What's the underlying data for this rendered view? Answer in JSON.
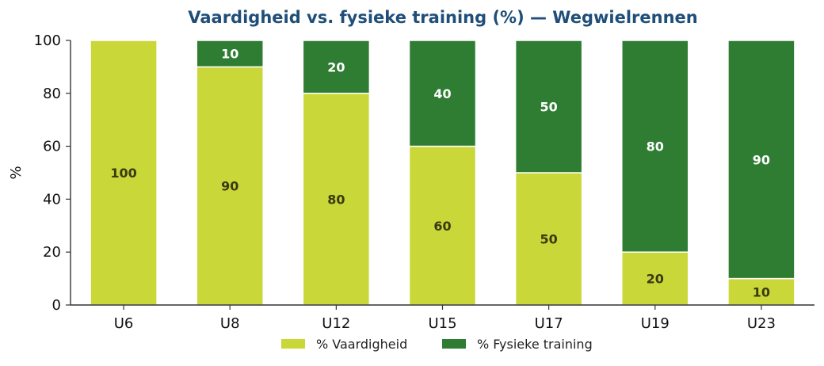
{
  "chart_data": {
    "type": "bar",
    "stacked": true,
    "title": "Vaardigheid vs. fysieke training (%) — Wegwielrennen",
    "xlabel": "",
    "ylabel": "%",
    "ylim": [
      0,
      100
    ],
    "yticks": [
      0,
      20,
      40,
      60,
      80,
      100
    ],
    "categories": [
      "U6",
      "U8",
      "U12",
      "U15",
      "U17",
      "U19",
      "U23"
    ],
    "series": [
      {
        "name": "% Vaardigheid",
        "values": [
          100,
          90,
          80,
          60,
          50,
          20,
          10
        ],
        "color": "#c9d739",
        "label_color": "#3a3a10"
      },
      {
        "name": "% Fysieke training",
        "values": [
          0,
          10,
          20,
          40,
          50,
          80,
          90
        ],
        "color": "#2e7d32",
        "label_color": "#ffffff"
      }
    ],
    "grid": false,
    "legend_position": "bottom-center"
  }
}
